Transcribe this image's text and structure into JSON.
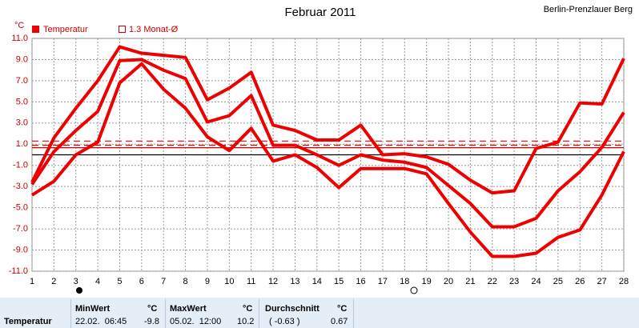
{
  "chart_data": {
    "type": "line",
    "title": "Februar 2011",
    "location": "Berlin-Prenzlauer Berg",
    "y_unit": "°C",
    "legend": [
      "Temperatur",
      "1.3 Monat-Ø"
    ],
    "x": [
      1,
      2,
      3,
      4,
      5,
      6,
      7,
      8,
      9,
      10,
      11,
      12,
      13,
      14,
      15,
      16,
      17,
      18,
      19,
      20,
      21,
      22,
      23,
      24,
      25,
      26,
      27,
      28
    ],
    "xlim": [
      1,
      28
    ],
    "xticks": [
      1,
      2,
      3,
      4,
      5,
      6,
      7,
      8,
      9,
      10,
      11,
      12,
      13,
      14,
      15,
      16,
      17,
      18,
      19,
      20,
      21,
      22,
      23,
      24,
      25,
      26,
      27,
      28
    ],
    "series": [
      {
        "color": "#ee0000",
        "values": [
          -2.6,
          1.6,
          4.4,
          7.0,
          10.2,
          9.6,
          9.4,
          9.2,
          5.2,
          6.3,
          7.8,
          2.8,
          2.3,
          1.4,
          1.4,
          2.8,
          0,
          0.1,
          -0.2,
          -0.9,
          -2.4,
          -3.6,
          -3.4,
          0.6,
          1.2,
          4.9,
          4.8,
          9.1
        ]
      },
      {
        "color": "#ee0000",
        "values": [
          -2.8,
          0.3,
          2.3,
          4.1,
          8.9,
          9.0,
          8.0,
          7.2,
          3.1,
          3.7,
          5.6,
          0.9,
          0.9,
          0,
          -1.0,
          0,
          -0.5,
          -0.7,
          -1.2,
          -2.9,
          -4.6,
          -6.8,
          -6.8,
          -6.0,
          -3.4,
          -1.6,
          0.7,
          4.0
        ]
      },
      {
        "color": "#ee0000",
        "values": [
          -3.8,
          -2.5,
          0,
          1.2,
          6.8,
          8.6,
          6.2,
          4.4,
          1.7,
          0.4,
          2.5,
          -0.6,
          0,
          -1.2,
          -3.1,
          -1.3,
          -1.3,
          -1.3,
          -1.8,
          -4.6,
          -7.3,
          -9.6,
          -9.6,
          -9.3,
          -7.8,
          -7.1,
          -3.8,
          0.3
        ]
      }
    ],
    "ref_lines": [
      {
        "value": 1.3,
        "color": "#ee0000",
        "style": "dashed"
      },
      {
        "value": 0.9,
        "color": "#ee0000",
        "style": "dashed"
      },
      {
        "value": 0.67,
        "color": "#cc0000",
        "style": "solid"
      },
      {
        "value": 0,
        "color": "#000000",
        "style": "solid"
      }
    ],
    "ylim": [
      -11,
      11
    ],
    "yticks": [
      {
        "value": 11,
        "label": "11.0"
      },
      {
        "value": 9,
        "label": "9.0"
      },
      {
        "value": 7,
        "label": "7.0"
      },
      {
        "value": 5,
        "label": "5.0"
      },
      {
        "value": 3,
        "label": "3.0"
      },
      {
        "value": 1,
        "label": "1.0"
      },
      {
        "value": -1,
        "label": "-1.0"
      },
      {
        "value": -3,
        "label": "-3.0"
      },
      {
        "value": -5,
        "label": "-5.0"
      },
      {
        "value": -7,
        "label": "-7.0"
      },
      {
        "value": -9,
        "label": "-9.0"
      },
      {
        "value": -11,
        "label": "-11.0"
      }
    ],
    "grid": true
  },
  "table": {
    "header": [
      "MinWert",
      "°C",
      "MaxWert",
      "°C",
      "Durchschnitt",
      "°C"
    ],
    "row": [
      "Temperatur",
      "22.02.  06:45",
      "-9.8",
      "05.02.  12:00",
      "10.2",
      "( -0.63 )",
      "0.67"
    ]
  }
}
